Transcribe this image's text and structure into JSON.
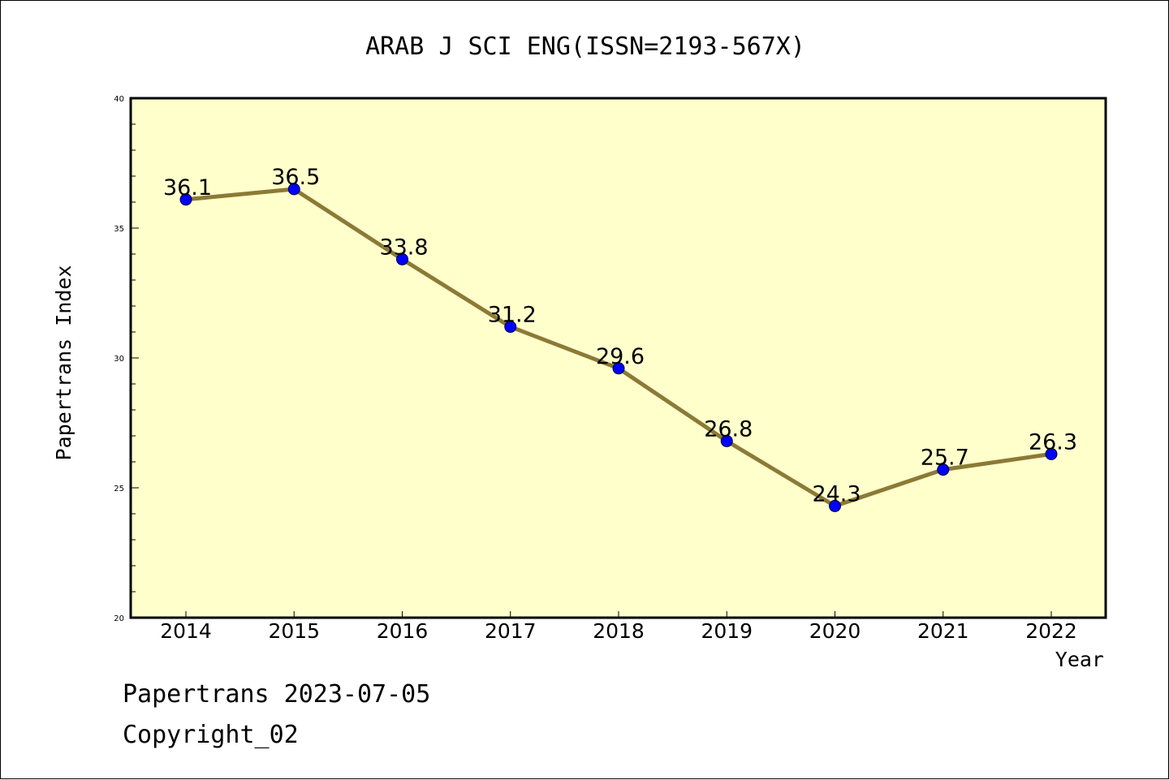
{
  "footer": {
    "line1": "Papertrans 2023-07-05",
    "line2": "Copyright_02"
  },
  "chart_data": {
    "type": "line",
    "title": "ARAB J SCI ENG(ISSN=2193-567X)",
    "xlabel": "Year",
    "ylabel": "Papertrans Index",
    "categories": [
      "2014",
      "2015",
      "2016",
      "2017",
      "2018",
      "2019",
      "2020",
      "2021",
      "2022"
    ],
    "values": [
      36.1,
      36.5,
      33.8,
      31.2,
      29.6,
      26.8,
      24.3,
      25.7,
      26.3
    ],
    "data_labels": [
      "36.1",
      "36.5",
      "33.8",
      "31.2",
      "29.6",
      "26.8",
      "24.3",
      "25.7",
      "26.3"
    ],
    "ylim": [
      20,
      40
    ],
    "yticks": [
      "20",
      "25",
      "30",
      "35",
      "40"
    ],
    "grid": false,
    "legend": "none",
    "colors": {
      "plot_background": "#ffffcc",
      "line": "#8b7a36",
      "marker": "#0000ff"
    }
  }
}
